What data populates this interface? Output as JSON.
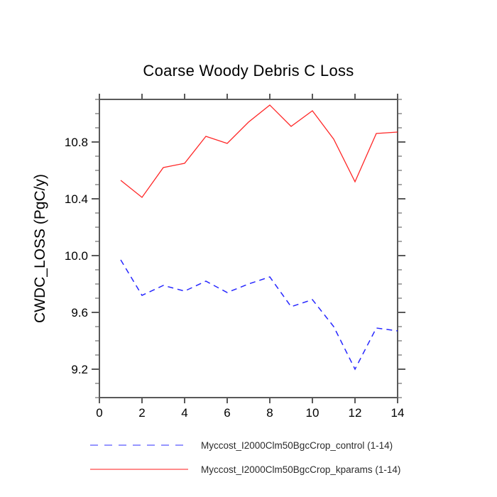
{
  "chart_data": {
    "type": "line",
    "title": "Coarse Woody Debris C Loss",
    "ylabel": "CWDC_LOSS  (PgC/y)",
    "xlabel": "",
    "x": [
      1,
      2,
      3,
      4,
      5,
      6,
      7,
      8,
      9,
      10,
      11,
      12,
      13,
      14
    ],
    "series": [
      {
        "name": "Myccost_I2000Clm50BgcCrop_control (1-14)",
        "color": "#0000ff",
        "style": "dashed",
        "values": [
          9.97,
          9.72,
          9.79,
          9.75,
          9.82,
          9.74,
          9.8,
          9.85,
          9.64,
          9.69,
          9.5,
          9.2,
          9.49,
          9.47
        ]
      },
      {
        "name": "Myccost_I2000Clm50BgcCrop_kparams (1-14)",
        "color": "#ff0000",
        "style": "solid",
        "values": [
          10.53,
          10.41,
          10.62,
          10.65,
          10.84,
          10.79,
          10.94,
          11.06,
          10.91,
          11.02,
          10.82,
          10.52,
          10.86,
          10.87
        ]
      }
    ],
    "xlim": [
      0,
      14
    ],
    "ylim": [
      9.0,
      11.1
    ],
    "x_ticks": [
      0,
      2,
      4,
      6,
      8,
      10,
      12,
      14
    ],
    "x_tick_labels": [
      "0",
      "2",
      "4",
      "6",
      "8",
      "10",
      "12",
      "14"
    ],
    "y_major_ticks": [
      9.2,
      9.6,
      10.0,
      10.4,
      10.8
    ],
    "y_tick_labels": [
      "9.2",
      "9.6",
      "10.0",
      "10.4",
      "10.8"
    ],
    "y_minor_step": 0.1,
    "grid": false,
    "legend_position": "bottom",
    "frame_color": "#595959",
    "minor_tick_color": "#a8a8a8",
    "label_color": "#000000"
  }
}
